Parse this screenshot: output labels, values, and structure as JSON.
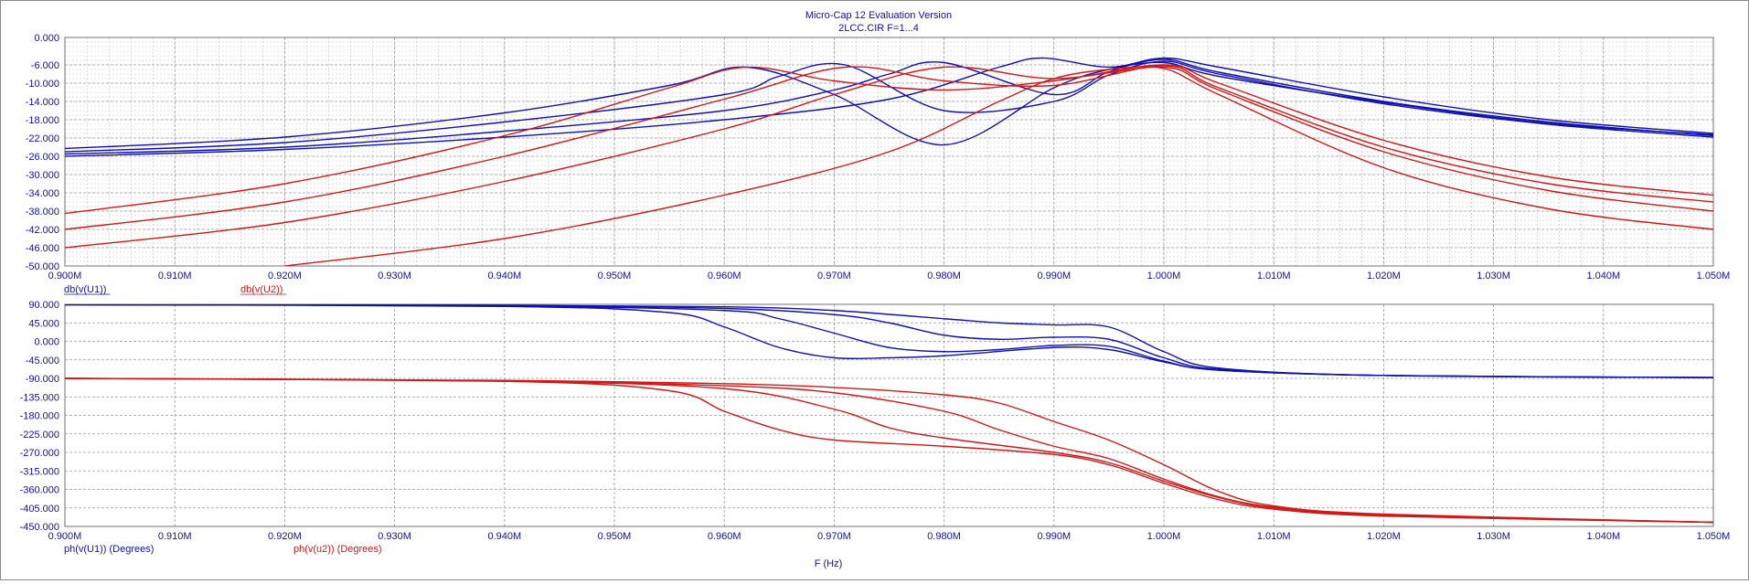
{
  "window": {
    "title": "Micro-Cap 12 Evaluation Version",
    "subtitle": "2LCC.CIR F=1...4"
  },
  "x_axis_label": "F (Hz)",
  "colors": {
    "blue": "#1010b0",
    "red": "#d01818",
    "grid": "#9a9a9a",
    "text": "#1010a0"
  },
  "chart_data": [
    {
      "type": "line",
      "name": "magnitude-plot",
      "xlim": [
        0.9,
        1.05
      ],
      "ylim": [
        -50,
        0
      ],
      "x_ticks": [
        "0.900M",
        "0.910M",
        "0.920M",
        "0.930M",
        "0.940M",
        "0.950M",
        "0.960M",
        "0.970M",
        "0.980M",
        "0.990M",
        "1.000M",
        "1.010M",
        "1.020M",
        "1.030M",
        "1.040M",
        "1.050M"
      ],
      "y_ticks": [
        "0.000",
        "-6.000",
        "-10.000",
        "-14.000",
        "-18.000",
        "-22.000",
        "-26.000",
        "-30.000",
        "-34.000",
        "-38.000",
        "-42.000",
        "-46.000",
        "-50.000"
      ],
      "y_tick_values": [
        0,
        -6,
        -10,
        -14,
        -18,
        -22,
        -26,
        -30,
        -34,
        -38,
        -42,
        -46,
        -50
      ],
      "grid": true,
      "legend": [
        "db(v(U1))",
        "db(v(U2))"
      ],
      "series": [
        {
          "name": "db(v(U1))",
          "color": "blue",
          "x": [
            0.9,
            0.92,
            0.94,
            0.955,
            0.962,
            0.97,
            0.98,
            0.99,
            0.995,
            1.0,
            1.005,
            1.02,
            1.035,
            1.05
          ],
          "values": [
            -24.3,
            -21.8,
            -16.5,
            -10.5,
            -6.5,
            -12.5,
            -23.5,
            -11.0,
            -7.0,
            -5.5,
            -8.5,
            -14.2,
            -18.8,
            -21.3
          ]
        },
        {
          "name": "db(v(U1))",
          "color": "blue",
          "x": [
            0.9,
            0.92,
            0.94,
            0.96,
            0.965,
            0.971,
            0.98,
            0.99,
            0.995,
            1.0,
            1.005,
            1.02,
            1.035,
            1.05
          ],
          "values": [
            -25.0,
            -23.0,
            -18.5,
            -12.5,
            -8.5,
            -6.0,
            -16.0,
            -14.0,
            -8.2,
            -5.2,
            -8.0,
            -14.5,
            -19.0,
            -21.8
          ]
        },
        {
          "name": "db(v(U1))",
          "color": "blue",
          "x": [
            0.9,
            0.92,
            0.94,
            0.96,
            0.97,
            0.975,
            0.98,
            0.99,
            0.995,
            1.0,
            1.005,
            1.02,
            1.035,
            1.05
          ],
          "values": [
            -25.5,
            -24.0,
            -20.5,
            -16.0,
            -11.5,
            -8.0,
            -5.5,
            -12.5,
            -7.5,
            -4.8,
            -7.6,
            -14.0,
            -18.5,
            -21.5
          ]
        },
        {
          "name": "db(v(U1))",
          "color": "blue",
          "x": [
            0.9,
            0.92,
            0.94,
            0.96,
            0.975,
            0.985,
            0.989,
            0.995,
            1.0,
            1.005,
            1.02,
            1.035,
            1.05
          ],
          "values": [
            -26.0,
            -24.5,
            -21.8,
            -18.0,
            -13.5,
            -6.5,
            -4.5,
            -6.5,
            -4.5,
            -6.5,
            -13.0,
            -18.0,
            -21.0
          ]
        },
        {
          "name": "db(v(U2))",
          "color": "red",
          "x": [
            0.9,
            0.92,
            0.94,
            0.955,
            0.962,
            0.97,
            0.98,
            0.99,
            1.0,
            1.005,
            1.02,
            1.035,
            1.05
          ],
          "values": [
            -38.5,
            -32.0,
            -21.5,
            -11.0,
            -6.5,
            -9.5,
            -11.5,
            -9.5,
            -6.0,
            -10.0,
            -22.5,
            -30.5,
            -34.5
          ]
        },
        {
          "name": "db(v(U2))",
          "color": "red",
          "x": [
            0.9,
            0.92,
            0.94,
            0.96,
            0.971,
            0.98,
            0.99,
            1.0,
            1.005,
            1.02,
            1.035,
            1.05
          ],
          "values": [
            -42.0,
            -36.0,
            -26.0,
            -13.5,
            -6.5,
            -9.5,
            -10.5,
            -6.2,
            -11.0,
            -24.0,
            -32.0,
            -36.0
          ]
        },
        {
          "name": "db(v(U2))",
          "color": "red",
          "x": [
            0.9,
            0.92,
            0.94,
            0.96,
            0.97,
            0.98,
            0.99,
            1.0,
            1.005,
            1.02,
            1.035,
            1.05
          ],
          "values": [
            -46.0,
            -40.5,
            -31.5,
            -20.0,
            -12.5,
            -6.5,
            -9.0,
            -6.5,
            -11.5,
            -25.0,
            -33.5,
            -38.0
          ]
        },
        {
          "name": "db(v(U2))",
          "color": "red",
          "x": [
            0.92,
            0.94,
            0.96,
            0.975,
            0.985,
            0.99,
            0.995,
            1.0,
            1.005,
            1.02,
            1.035,
            1.05
          ],
          "values": [
            -50.0,
            -44.0,
            -34.5,
            -25.0,
            -14.0,
            -9.0,
            -7.0,
            -6.8,
            -12.5,
            -28.5,
            -37.5,
            -42.0
          ]
        }
      ]
    },
    {
      "type": "line",
      "name": "phase-plot",
      "xlim": [
        0.9,
        1.05
      ],
      "ylim": [
        -450,
        90
      ],
      "x_ticks": [
        "0.900M",
        "0.910M",
        "0.920M",
        "0.930M",
        "0.940M",
        "0.950M",
        "0.960M",
        "0.970M",
        "0.980M",
        "0.990M",
        "1.000M",
        "1.010M",
        "1.020M",
        "1.030M",
        "1.040M",
        "1.050M"
      ],
      "y_ticks": [
        "90.000",
        "45.000",
        "0.000",
        "-45.000",
        "-90.000",
        "-135.000",
        "-180.000",
        "-225.000",
        "-270.000",
        "-315.000",
        "-360.000",
        "-405.000",
        "-450.000"
      ],
      "y_tick_values": [
        90,
        45,
        0,
        -45,
        -90,
        -135,
        -180,
        -225,
        -270,
        -315,
        -360,
        -405,
        -450
      ],
      "grid": true,
      "legend": [
        "ph(v(U1)) (Degrees)",
        "ph(v(u2)) (Degrees)"
      ],
      "series": [
        {
          "name": "ph(v(U1))",
          "color": "blue",
          "x": [
            0.9,
            0.94,
            0.955,
            0.96,
            0.965,
            0.97,
            0.975,
            0.98,
            0.99,
            0.995,
            1.0,
            1.005,
            1.02,
            1.05
          ],
          "values": [
            89,
            85,
            70,
            35,
            -15,
            -40,
            -40,
            -35,
            -15,
            -20,
            -50,
            -70,
            -83,
            -88
          ]
        },
        {
          "name": "ph(v(U1))",
          "color": "blue",
          "x": [
            0.9,
            0.94,
            0.96,
            0.965,
            0.97,
            0.975,
            0.98,
            0.985,
            0.99,
            0.995,
            1.0,
            1.005,
            1.02,
            1.05
          ],
          "values": [
            89,
            86,
            75,
            55,
            20,
            -15,
            -25,
            -20,
            -10,
            -12,
            -48,
            -70,
            -83,
            -88
          ]
        },
        {
          "name": "ph(v(U1))",
          "color": "blue",
          "x": [
            0.9,
            0.94,
            0.96,
            0.97,
            0.975,
            0.98,
            0.985,
            0.99,
            0.995,
            1.0,
            1.005,
            1.02,
            1.05
          ],
          "values": [
            89,
            87,
            80,
            65,
            45,
            15,
            5,
            10,
            5,
            -40,
            -68,
            -83,
            -88
          ]
        },
        {
          "name": "ph(v(U1))",
          "color": "blue",
          "x": [
            0.9,
            0.94,
            0.96,
            0.97,
            0.98,
            0.985,
            0.99,
            0.995,
            1.0,
            1.005,
            1.02,
            1.05
          ],
          "values": [
            89,
            88,
            84,
            75,
            55,
            45,
            40,
            35,
            -25,
            -65,
            -83,
            -88
          ]
        },
        {
          "name": "ph(v(u2))",
          "color": "red",
          "x": [
            0.9,
            0.94,
            0.955,
            0.96,
            0.965,
            0.97,
            0.98,
            0.99,
            0.995,
            1.0,
            1.005,
            1.01,
            1.02,
            1.05
          ],
          "values": [
            -90,
            -97,
            -120,
            -170,
            -215,
            -240,
            -255,
            -275,
            -300,
            -345,
            -385,
            -408,
            -425,
            -440
          ]
        },
        {
          "name": "ph(v(u2))",
          "color": "red",
          "x": [
            0.9,
            0.94,
            0.96,
            0.97,
            0.975,
            0.98,
            0.99,
            0.995,
            1.0,
            1.005,
            1.01,
            1.02,
            1.05
          ],
          "values": [
            -90,
            -97,
            -115,
            -165,
            -210,
            -235,
            -270,
            -295,
            -340,
            -380,
            -405,
            -423,
            -440
          ]
        },
        {
          "name": "ph(v(u2))",
          "color": "red",
          "x": [
            0.9,
            0.94,
            0.96,
            0.97,
            0.98,
            0.985,
            0.99,
            0.995,
            1.0,
            1.005,
            1.01,
            1.02,
            1.05
          ],
          "values": [
            -90,
            -96,
            -108,
            -125,
            -170,
            -215,
            -255,
            -285,
            -335,
            -378,
            -403,
            -422,
            -440
          ]
        },
        {
          "name": "ph(v(u2))",
          "color": "red",
          "x": [
            0.9,
            0.94,
            0.96,
            0.97,
            0.98,
            0.985,
            0.99,
            0.995,
            1.0,
            1.005,
            1.01,
            1.02,
            1.05
          ],
          "values": [
            -90,
            -95,
            -103,
            -112,
            -130,
            -150,
            -195,
            -240,
            -300,
            -365,
            -400,
            -420,
            -440
          ]
        }
      ]
    }
  ]
}
